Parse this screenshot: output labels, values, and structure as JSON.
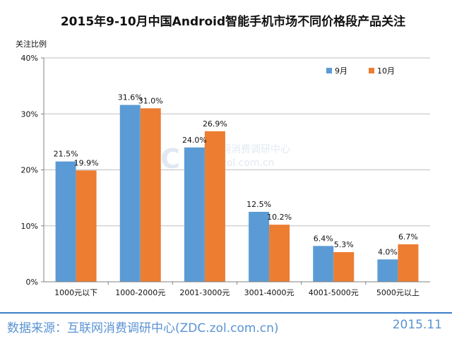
{
  "chart_data": {
    "type": "bar",
    "title": "2015年9-10月中国Android智能手机市场不同价格段产品关注",
    "ylabel": "关注比例",
    "ylim": [
      0,
      40
    ],
    "yticks": [
      "0%",
      "10%",
      "20%",
      "30%",
      "40%"
    ],
    "categories": [
      "1000元以下",
      "1000-2000元",
      "2001-3000元",
      "3001-4000元",
      "4001-5000元",
      "5000元以上"
    ],
    "series": [
      {
        "name": "9月",
        "color": "#5b9bd5",
        "values": [
          21.5,
          31.6,
          24.0,
          12.5,
          6.4,
          4.0
        ],
        "labels": [
          "21.5%",
          "31.6%",
          "24.0%",
          "12.5%",
          "6.4%",
          "4.0%"
        ]
      },
      {
        "name": "10月",
        "color": "#ed7d31",
        "values": [
          19.9,
          31.0,
          26.9,
          10.2,
          5.3,
          6.7
        ],
        "labels": [
          "19.9%",
          "31.0%",
          "26.9%",
          "10.2%",
          "5.3%",
          "6.7%"
        ]
      }
    ],
    "grid": true,
    "legend": "top-right"
  },
  "watermark": {
    "logo": "ZDC",
    "line1": "互联网消费调研中心",
    "line2": "zdc.zol.com.cn"
  },
  "footer": {
    "source": "数据来源：互联网消费调研中心(ZDC.zol.com.cn)",
    "date": "2015.11"
  }
}
